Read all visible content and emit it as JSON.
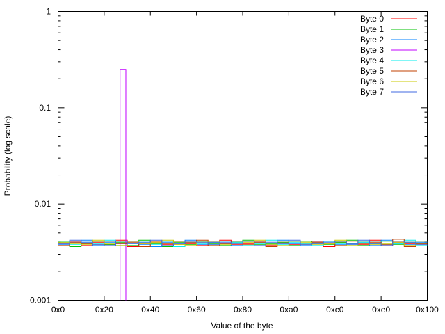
{
  "chart_data": {
    "type": "line",
    "step": true,
    "title": "",
    "xlabel": "Value of the byte",
    "ylabel": "Probability (log scale)",
    "xlim": [
      0,
      256
    ],
    "ylim": [
      0.001,
      1
    ],
    "yscale": "log",
    "grid": false,
    "legend_position": "top-right",
    "xticks": [
      {
        "v": 0,
        "label": "0x0"
      },
      {
        "v": 32,
        "label": "0x20"
      },
      {
        "v": 64,
        "label": "0x40"
      },
      {
        "v": 96,
        "label": "0x60"
      },
      {
        "v": 128,
        "label": "0x80"
      },
      {
        "v": 160,
        "label": "0xa0"
      },
      {
        "v": 192,
        "label": "0xc0"
      },
      {
        "v": 224,
        "label": "0xe0"
      },
      {
        "v": 256,
        "label": "0x100"
      }
    ],
    "yticks": [
      {
        "v": 0.001,
        "label": "0.001"
      },
      {
        "v": 0.01,
        "label": "0.01"
      },
      {
        "v": 0.1,
        "label": "0.1"
      },
      {
        "v": 1,
        "label": "1"
      }
    ],
    "bin_width": 8,
    "series": [
      {
        "name": "Byte 0",
        "color": "#ff0000",
        "values": [
          0.0039,
          0.0041,
          0.0037,
          0.004,
          0.0038,
          0.0042,
          0.0036,
          0.0039,
          0.004,
          0.0038,
          0.0041,
          0.0039,
          0.0037,
          0.004,
          0.0042,
          0.0038,
          0.0039,
          0.0041,
          0.0037,
          0.004,
          0.0038,
          0.0039,
          0.0041,
          0.0036,
          0.004,
          0.0039,
          0.0038,
          0.0042,
          0.0037,
          0.004,
          0.0039,
          0.0038
        ]
      },
      {
        "name": "Byte 1",
        "color": "#00c000",
        "values": [
          0.004,
          0.0036,
          0.0039,
          0.0041,
          0.0038,
          0.004,
          0.0037,
          0.0042,
          0.0039,
          0.0036,
          0.004,
          0.0038,
          0.0041,
          0.0039,
          0.0037,
          0.004,
          0.0042,
          0.0038,
          0.0039,
          0.004,
          0.0037,
          0.0041,
          0.0039,
          0.0038,
          0.004,
          0.0042,
          0.0037,
          0.0039,
          0.0041,
          0.0038,
          0.004,
          0.0039
        ]
      },
      {
        "name": "Byte 2",
        "color": "#0080ff",
        "values": [
          0.0038,
          0.004,
          0.0042,
          0.0037,
          0.004,
          0.0039,
          0.0041,
          0.0038,
          0.0036,
          0.004,
          0.0039,
          0.0042,
          0.0038,
          0.004,
          0.0039,
          0.0037,
          0.0041,
          0.004,
          0.0038,
          0.0042,
          0.0039,
          0.0037,
          0.004,
          0.0041,
          0.0038,
          0.0039,
          0.004,
          0.0037,
          0.0042,
          0.0039,
          0.0038,
          0.004
        ]
      },
      {
        "name": "Byte 3",
        "color": "#c000ff",
        "segments": [
          {
            "x0": 43,
            "x1": 47,
            "y": 0.25
          }
        ]
      },
      {
        "name": "Byte 4",
        "color": "#00eeee",
        "values": [
          0.0041,
          0.0038,
          0.004,
          0.0039,
          0.0042,
          0.0037,
          0.0039,
          0.004,
          0.0038,
          0.0041,
          0.0036,
          0.004,
          0.0039,
          0.0038,
          0.0041,
          0.004,
          0.0037,
          0.0039,
          0.0042,
          0.0038,
          0.004,
          0.0039,
          0.0037,
          0.0041,
          0.0039,
          0.0038,
          0.004,
          0.0041,
          0.0038,
          0.0039,
          0.0042,
          0.0037
        ]
      },
      {
        "name": "Byte 5",
        "color": "#c04000",
        "values": [
          0.0037,
          0.004,
          0.0039,
          0.0038,
          0.0041,
          0.0039,
          0.004,
          0.0036,
          0.0041,
          0.0039,
          0.0038,
          0.004,
          0.0042,
          0.0037,
          0.0039,
          0.0041,
          0.0038,
          0.004,
          0.0036,
          0.0039,
          0.0041,
          0.0038,
          0.004,
          0.0039,
          0.0037,
          0.0041,
          0.0039,
          0.004,
          0.0038,
          0.0043,
          0.0036,
          0.0039
        ]
      },
      {
        "name": "Byte 6",
        "color": "#c8c800",
        "values": [
          0.004,
          0.0039,
          0.0038,
          0.0042,
          0.0039,
          0.0037,
          0.0041,
          0.0039,
          0.004,
          0.0042,
          0.0038,
          0.0037,
          0.004,
          0.0041,
          0.0038,
          0.0039,
          0.004,
          0.0042,
          0.0038,
          0.0037,
          0.0041,
          0.004,
          0.0038,
          0.0039,
          0.0042,
          0.0037,
          0.0041,
          0.0038,
          0.0039,
          0.004,
          0.0037,
          0.0041
        ]
      },
      {
        "name": "Byte 7",
        "color": "#4169e1",
        "values": [
          0.0039,
          0.0042,
          0.004,
          0.0038,
          0.0037,
          0.0041,
          0.0039,
          0.004,
          0.0042,
          0.0037,
          0.0039,
          0.0041,
          0.004,
          0.0038,
          0.004,
          0.0039,
          0.0041,
          0.0037,
          0.004,
          0.0039,
          0.0042,
          0.0038,
          0.0039,
          0.004,
          0.0041,
          0.0038,
          0.0042,
          0.0039,
          0.0037,
          0.0041,
          0.004,
          0.0038
        ]
      }
    ]
  }
}
